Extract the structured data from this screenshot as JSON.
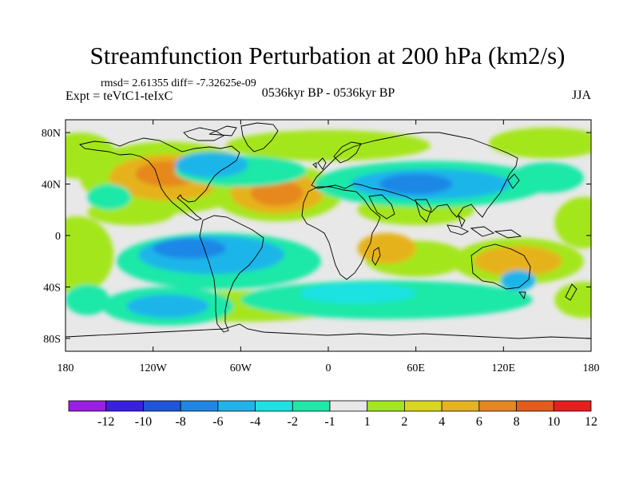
{
  "title": "Streamfunction Perturbation at 200 hPa (km2/s)",
  "stats": "rmsd= 2.61355 diff= -7.32625e-09",
  "experiment": "Expt = teVtC1-teIxC",
  "period": "0536kyr BP - 0536kyr BP",
  "season": "JJA",
  "lat_ticks": [
    "80N",
    "40N",
    "0",
    "40S",
    "80S"
  ],
  "lon_ticks": [
    "180",
    "120W",
    "60W",
    "0",
    "60E",
    "120E",
    "180"
  ],
  "colorbar": {
    "labels": [
      "-12",
      "-10",
      "-8",
      "-6",
      "-4",
      "-2",
      "-1",
      "1",
      "2",
      "4",
      "6",
      "8",
      "10",
      "12"
    ],
    "colors": [
      "#9a1fe6",
      "#3a1fe0",
      "#1f55dd",
      "#1e87e6",
      "#1fb5ea",
      "#1ee2e2",
      "#1fe8a8",
      "#e8e8e8",
      "#a4e61e",
      "#d8d61e",
      "#e6b21e",
      "#e6881e",
      "#e65a1e",
      "#e61e1e"
    ]
  },
  "field": {
    "background": "#e8e8e8",
    "blobs": [
      {
        "lon": 0,
        "lat": 70,
        "rx": 70,
        "ry": 12,
        "level": 1
      },
      {
        "lon": -170,
        "lat": 62,
        "rx": 25,
        "ry": 18,
        "level": 1
      },
      {
        "lon": 150,
        "lat": 72,
        "rx": 40,
        "ry": 12,
        "level": 1
      },
      {
        "lon": -110,
        "lat": 45,
        "rx": 60,
        "ry": 28,
        "level": 1
      },
      {
        "lon": -110,
        "lat": 45,
        "rx": 40,
        "ry": 18,
        "level": 3
      },
      {
        "lon": -110,
        "lat": 48,
        "rx": 22,
        "ry": 10,
        "level": 4
      },
      {
        "lon": -35,
        "lat": 33,
        "rx": 45,
        "ry": 22,
        "level": 1
      },
      {
        "lon": -35,
        "lat": 33,
        "rx": 32,
        "ry": 16,
        "level": 3
      },
      {
        "lon": -35,
        "lat": 33,
        "rx": 18,
        "ry": 10,
        "level": 4
      },
      {
        "lon": -135,
        "lat": 18,
        "rx": 30,
        "ry": 10,
        "level": 1
      },
      {
        "lon": -172,
        "lat": -15,
        "rx": 25,
        "ry": 30,
        "level": 1
      },
      {
        "lon": -60,
        "lat": -55,
        "rx": 70,
        "ry": 12,
        "level": 1
      },
      {
        "lon": 60,
        "lat": -18,
        "rx": 35,
        "ry": 14,
        "level": 1
      },
      {
        "lon": 40,
        "lat": -10,
        "rx": 20,
        "ry": 12,
        "level": 3
      },
      {
        "lon": 130,
        "lat": -20,
        "rx": 45,
        "ry": 18,
        "level": 1
      },
      {
        "lon": 130,
        "lat": -20,
        "rx": 30,
        "ry": 12,
        "level": 3
      },
      {
        "lon": 175,
        "lat": -50,
        "rx": 20,
        "ry": 14,
        "level": 1
      },
      {
        "lon": 175,
        "lat": 10,
        "rx": 20,
        "ry": 20,
        "level": 1
      },
      {
        "lon": 60,
        "lat": 20,
        "rx": 40,
        "ry": 12,
        "level": 1
      },
      {
        "lon": -60,
        "lat": 50,
        "rx": 45,
        "ry": 12,
        "level": -1
      },
      {
        "lon": -80,
        "lat": 55,
        "rx": 25,
        "ry": 10,
        "level": -3
      },
      {
        "lon": 70,
        "lat": 40,
        "rx": 80,
        "ry": 18,
        "level": -1
      },
      {
        "lon": 70,
        "lat": 40,
        "rx": 55,
        "ry": 12,
        "level": -3
      },
      {
        "lon": 60,
        "lat": 40,
        "rx": 25,
        "ry": 8,
        "level": -4
      },
      {
        "lon": 150,
        "lat": 45,
        "rx": 25,
        "ry": 12,
        "level": -1
      },
      {
        "lon": -150,
        "lat": 30,
        "rx": 15,
        "ry": 10,
        "level": -1
      },
      {
        "lon": -75,
        "lat": -20,
        "rx": 70,
        "ry": 22,
        "level": -1
      },
      {
        "lon": -80,
        "lat": -15,
        "rx": 50,
        "ry": 15,
        "level": -3
      },
      {
        "lon": -95,
        "lat": -10,
        "rx": 25,
        "ry": 8,
        "level": -4
      },
      {
        "lon": -110,
        "lat": -55,
        "rx": 45,
        "ry": 15,
        "level": -1
      },
      {
        "lon": -110,
        "lat": -55,
        "rx": 28,
        "ry": 9,
        "level": -3
      },
      {
        "lon": 40,
        "lat": -50,
        "rx": 100,
        "ry": 15,
        "level": -1
      },
      {
        "lon": 20,
        "lat": -45,
        "rx": 40,
        "ry": 8,
        "level": -2
      },
      {
        "lon": 130,
        "lat": -35,
        "rx": 12,
        "ry": 8,
        "level": -3
      },
      {
        "lon": -165,
        "lat": -50,
        "rx": 15,
        "ry": 12,
        "level": -1
      }
    ]
  }
}
